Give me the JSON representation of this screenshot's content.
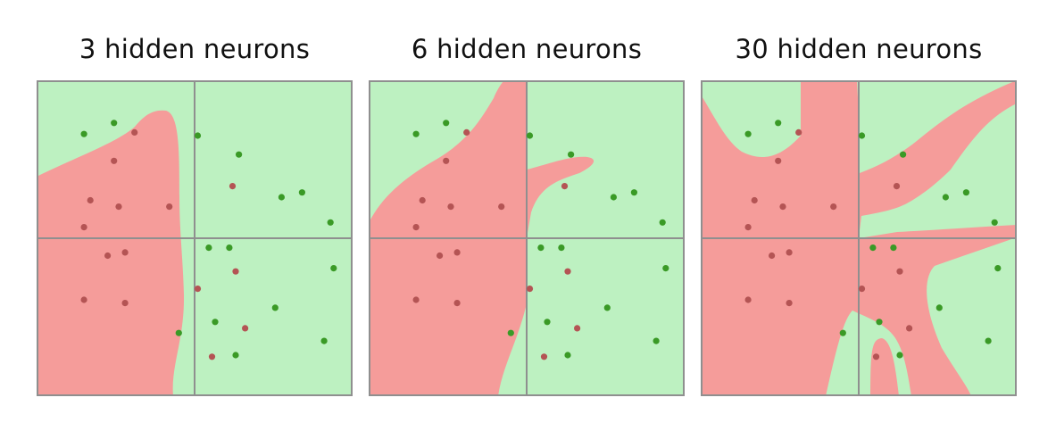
{
  "colors": {
    "red_region": "#f59c9a",
    "green_region": "#bdf1c1",
    "red_point": "#b45454",
    "green_point": "#3a9a26",
    "grid": "#8f8f8f"
  },
  "panels": [
    {
      "title": "3 hidden neurons",
      "points": {
        "green": [
          [
            -0.7,
            0.66
          ],
          [
            -0.51,
            0.73
          ],
          [
            0.02,
            0.65
          ],
          [
            0.28,
            0.53
          ],
          [
            0.55,
            0.26
          ],
          [
            0.68,
            0.29
          ],
          [
            0.86,
            0.1
          ],
          [
            0.09,
            -0.06
          ],
          [
            0.22,
            -0.06
          ],
          [
            0.88,
            -0.19
          ],
          [
            -0.1,
            -0.6
          ],
          [
            0.51,
            -0.44
          ],
          [
            0.13,
            -0.53
          ],
          [
            0.82,
            -0.65
          ],
          [
            0.26,
            -0.74
          ]
        ],
        "red": [
          [
            -0.38,
            0.67
          ],
          [
            -0.51,
            0.49
          ],
          [
            -0.66,
            0.24
          ],
          [
            -0.48,
            0.2
          ],
          [
            -0.16,
            0.2
          ],
          [
            0.24,
            0.33
          ],
          [
            -0.7,
            0.07
          ],
          [
            -0.55,
            -0.11
          ],
          [
            -0.44,
            -0.09
          ],
          [
            0.26,
            -0.21
          ],
          [
            0.02,
            -0.32
          ],
          [
            -0.7,
            -0.39
          ],
          [
            -0.44,
            -0.41
          ],
          [
            0.32,
            -0.57
          ],
          [
            0.11,
            -0.75
          ]
        ]
      }
    },
    {
      "title": "6 hidden neurons",
      "points": {
        "green": [
          [
            -0.7,
            0.66
          ],
          [
            -0.51,
            0.73
          ],
          [
            0.02,
            0.65
          ],
          [
            0.28,
            0.53
          ],
          [
            0.55,
            0.26
          ],
          [
            0.68,
            0.29
          ],
          [
            0.86,
            0.1
          ],
          [
            0.09,
            -0.06
          ],
          [
            0.22,
            -0.06
          ],
          [
            0.88,
            -0.19
          ],
          [
            -0.1,
            -0.6
          ],
          [
            0.51,
            -0.44
          ],
          [
            0.13,
            -0.53
          ],
          [
            0.82,
            -0.65
          ],
          [
            0.26,
            -0.74
          ]
        ],
        "red": [
          [
            -0.38,
            0.67
          ],
          [
            -0.51,
            0.49
          ],
          [
            -0.66,
            0.24
          ],
          [
            -0.48,
            0.2
          ],
          [
            -0.16,
            0.2
          ],
          [
            0.24,
            0.33
          ],
          [
            -0.7,
            0.07
          ],
          [
            -0.55,
            -0.11
          ],
          [
            -0.44,
            -0.09
          ],
          [
            0.26,
            -0.21
          ],
          [
            0.02,
            -0.32
          ],
          [
            -0.7,
            -0.39
          ],
          [
            -0.44,
            -0.41
          ],
          [
            0.32,
            -0.57
          ],
          [
            0.11,
            -0.75
          ]
        ]
      }
    },
    {
      "title": "30 hidden neurons",
      "points": {
        "green": [
          [
            -0.7,
            0.66
          ],
          [
            -0.51,
            0.73
          ],
          [
            0.02,
            0.65
          ],
          [
            0.28,
            0.53
          ],
          [
            0.55,
            0.26
          ],
          [
            0.68,
            0.29
          ],
          [
            0.86,
            0.1
          ],
          [
            0.09,
            -0.06
          ],
          [
            0.22,
            -0.06
          ],
          [
            0.88,
            -0.19
          ],
          [
            -0.1,
            -0.6
          ],
          [
            0.51,
            -0.44
          ],
          [
            0.13,
            -0.53
          ],
          [
            0.82,
            -0.65
          ],
          [
            0.26,
            -0.74
          ]
        ],
        "red": [
          [
            -0.38,
            0.67
          ],
          [
            -0.51,
            0.49
          ],
          [
            -0.66,
            0.24
          ],
          [
            -0.48,
            0.2
          ],
          [
            -0.16,
            0.2
          ],
          [
            0.24,
            0.33
          ],
          [
            -0.7,
            0.07
          ],
          [
            -0.55,
            -0.11
          ],
          [
            -0.44,
            -0.09
          ],
          [
            0.26,
            -0.21
          ],
          [
            0.02,
            -0.32
          ],
          [
            -0.7,
            -0.39
          ],
          [
            -0.44,
            -0.41
          ],
          [
            0.32,
            -0.57
          ],
          [
            0.11,
            -0.75
          ]
        ]
      }
    }
  ]
}
